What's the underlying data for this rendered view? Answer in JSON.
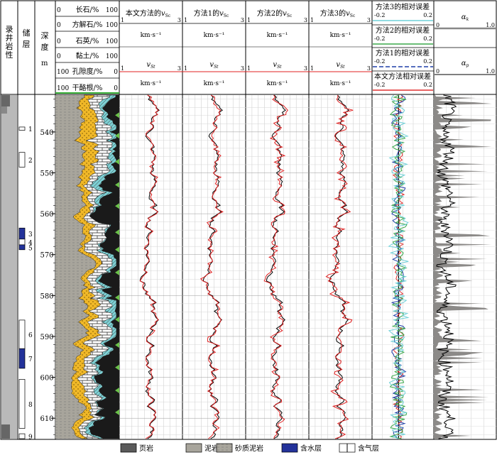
{
  "columns": {
    "lithology": "录井岩性",
    "reservoir": "储层",
    "depth": "深度",
    "depth_unit": "m"
  },
  "mineral_track": {
    "rows": [
      {
        "label": "长石/%",
        "left": "0",
        "right": "100"
      },
      {
        "label": "方解石/%",
        "left": "0",
        "right": "100"
      },
      {
        "label": "石英/%",
        "left": "0",
        "right": "100"
      },
      {
        "label": "黏土/%",
        "left": "0",
        "right": "100"
      },
      {
        "label": "孔隙度/%",
        "left": "100",
        "right": "0"
      },
      {
        "label": "干酪根/%",
        "left": "100",
        "right": "0"
      }
    ]
  },
  "vs_tracks": [
    {
      "title": "本文方法的",
      "sub": "Sc",
      "scale_left": "1",
      "scale_right": "3",
      "unit": "km·s⁻¹",
      "vs": "v",
      "vs_sub": "St"
    },
    {
      "title": "方法1的",
      "sub": "Sc",
      "scale_left": "1",
      "scale_right": "3",
      "unit": "km·s⁻¹",
      "vs": "v",
      "vs_sub": "St"
    },
    {
      "title": "方法2的",
      "sub": "Sc",
      "scale_left": "1",
      "scale_right": "3",
      "unit": "km·s⁻¹",
      "vs": "v",
      "vs_sub": "St"
    },
    {
      "title": "方法3的",
      "sub": "Sc",
      "scale_left": "1",
      "scale_right": "3",
      "unit": "km·s⁻¹",
      "vs": "v",
      "vs_sub": "St"
    }
  ],
  "error_track": {
    "rows": [
      {
        "label": "方法3的相对误差",
        "left": "-0.2",
        "right": "0.2",
        "color": "#6fd0d8"
      },
      {
        "label": "方法2的相对误差",
        "left": "-0.2",
        "right": "0.2",
        "color": "#3aa84a"
      },
      {
        "label": "方法1的相对误差",
        "left": "-0.2",
        "right": "0.2",
        "color": "#1f3fa8"
      },
      {
        "label": "本文方法相对误差",
        "left": "-0.2",
        "right": "0.2",
        "color": "#e03030"
      }
    ]
  },
  "alpha_track": {
    "rows": [
      {
        "label": "α",
        "sub": "k",
        "left": "0",
        "right": "1.0"
      },
      {
        "label": "α",
        "sub": "p",
        "left": "0",
        "right": "1.0"
      }
    ]
  },
  "depth_ticks": [
    "540",
    "550",
    "560",
    "570",
    "580",
    "590",
    "600",
    "610"
  ],
  "reservoirs": [
    "1",
    "2",
    "3",
    "4",
    "5",
    "6",
    "7",
    "8",
    "9"
  ],
  "legend": [
    {
      "label": "页岩",
      "kind": "shale"
    },
    {
      "label": "泥岩",
      "kind": "mudstone"
    },
    {
      "label": "砂质泥岩",
      "kind": "sandy"
    },
    {
      "label": "含水层",
      "kind": "water"
    },
    {
      "label": "含气层",
      "kind": "gas"
    }
  ],
  "colors": {
    "feldspar": "#f0b828",
    "calcite": "#ffffff",
    "quartz": "#f0b828",
    "clay": "#a8a59c",
    "porosity": "#7ccfd3",
    "kerogen": "#1a1a1a",
    "measured": "#000000",
    "predicted": "#e02020",
    "water": "#23329a",
    "grid": "#b0b0b0"
  }
}
